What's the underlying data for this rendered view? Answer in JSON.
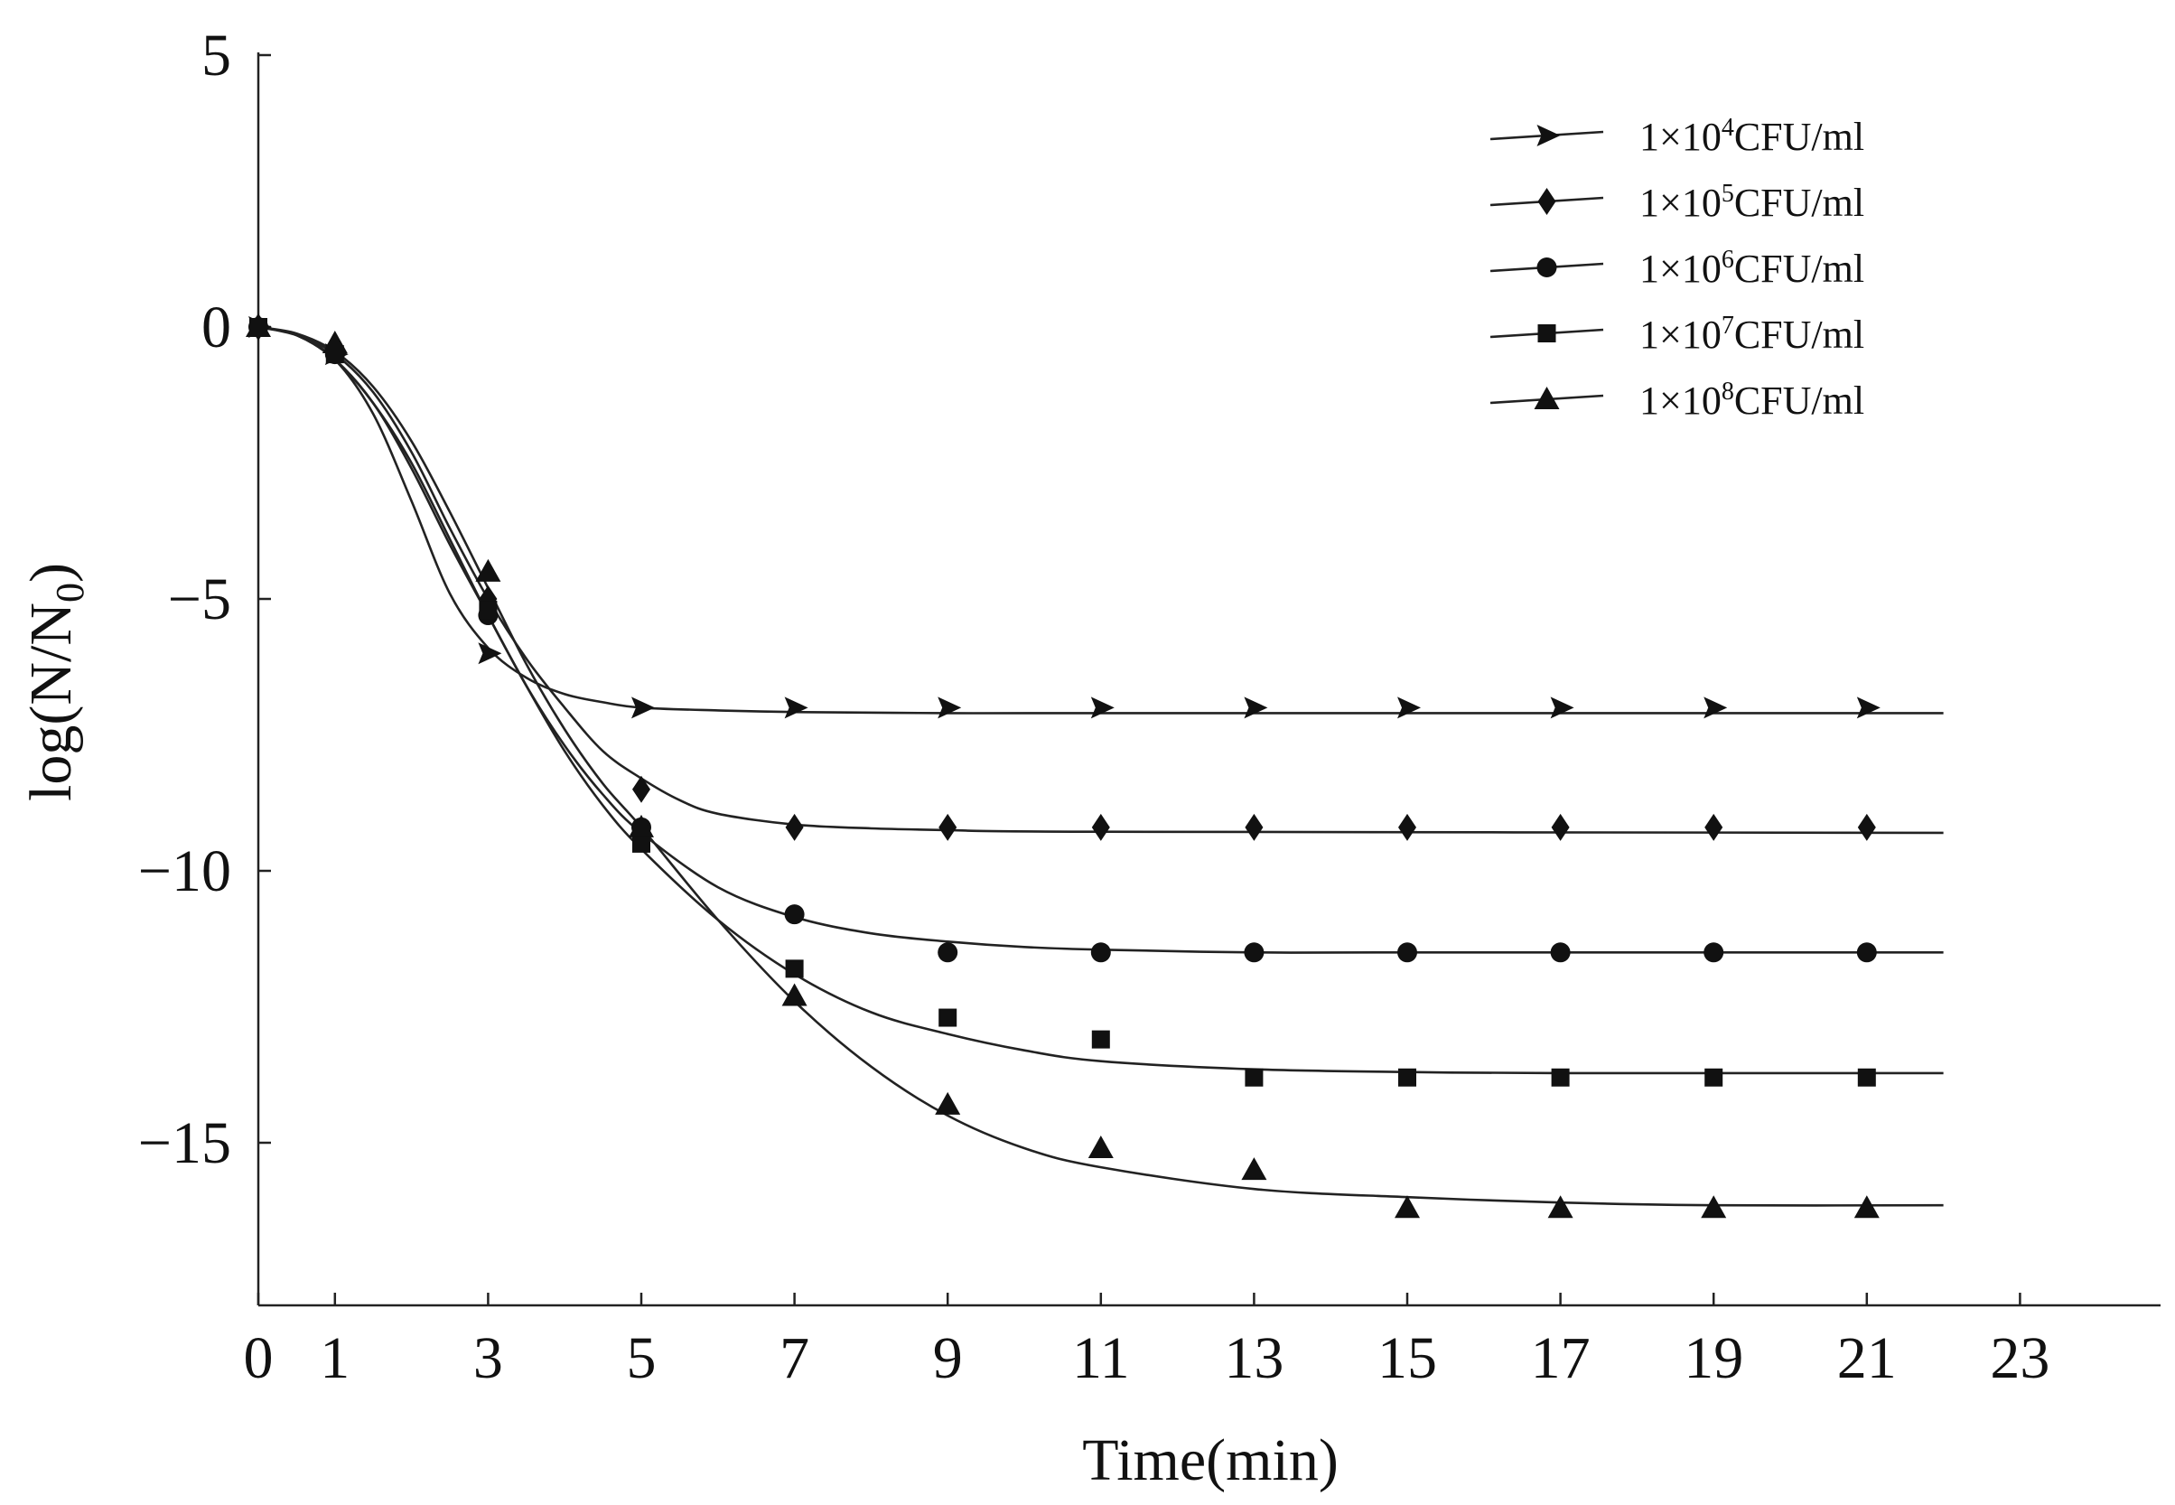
{
  "chart_data": {
    "type": "line",
    "title": "",
    "xlabel": "Time(min)",
    "ylabel": "log(N/N0)",
    "ylabel_parts": {
      "pre": "log(N/N",
      "sub": "0",
      "post": ")"
    },
    "xlim": [
      0,
      25
    ],
    "ylim": [
      -17.5,
      5
    ],
    "xticks": [
      0,
      1,
      3,
      5,
      7,
      9,
      11,
      13,
      15,
      17,
      19,
      21,
      23
    ],
    "yticks": [
      5,
      0,
      -5,
      -10,
      -15
    ],
    "ytick_labels": [
      "5",
      "0",
      "−5",
      "−10",
      "−15"
    ],
    "grid": false,
    "legend_position": "top-right",
    "series": [
      {
        "name": "1×10⁴CFU/ml",
        "label_pre": "1×10",
        "label_exp": "4",
        "label_post": "CFU/ml",
        "marker": "triangle-right",
        "x": [
          0,
          1,
          3,
          5,
          7,
          9,
          11,
          13,
          15,
          17,
          19,
          21
        ],
        "y": [
          0,
          -0.5,
          -6.0,
          -7.0,
          -7.0,
          -7.0,
          -7.0,
          -7.0,
          -7.0,
          -7.0,
          -7.0,
          -7.0
        ],
        "fit_x": [
          0,
          0.5,
          1,
          1.5,
          2,
          2.5,
          3,
          3.5,
          4,
          4.5,
          5,
          6,
          7,
          9,
          11,
          22
        ],
        "fit_y": [
          0,
          -0.15,
          -0.6,
          -1.6,
          -3.2,
          -4.9,
          -5.9,
          -6.45,
          -6.75,
          -6.9,
          -7.0,
          -7.05,
          -7.08,
          -7.1,
          -7.1,
          -7.1
        ]
      },
      {
        "name": "1×10⁵CFU/ml",
        "label_pre": "1×10",
        "label_exp": "5",
        "label_post": "CFU/ml",
        "marker": "diamond",
        "x": [
          0,
          1,
          3,
          5,
          7,
          9,
          11,
          13,
          15,
          17,
          19,
          21
        ],
        "y": [
          0,
          -0.4,
          -5.0,
          -8.5,
          -9.2,
          -9.2,
          -9.2,
          -9.2,
          -9.2,
          -9.2,
          -9.2,
          -9.2
        ],
        "fit_x": [
          0,
          0.5,
          1,
          1.5,
          2,
          2.5,
          3,
          3.5,
          4,
          4.5,
          5,
          5.5,
          6,
          7,
          8,
          9,
          11,
          22
        ],
        "fit_y": [
          0,
          -0.15,
          -0.5,
          -1.2,
          -2.3,
          -3.7,
          -5.0,
          -6.1,
          -7.0,
          -7.8,
          -8.3,
          -8.7,
          -8.95,
          -9.15,
          -9.22,
          -9.25,
          -9.28,
          -9.3
        ]
      },
      {
        "name": "1×10⁶CFU/ml",
        "label_pre": "1×10",
        "label_exp": "6",
        "label_post": "CFU/ml",
        "marker": "circle",
        "x": [
          0,
          1,
          3,
          5,
          7,
          9,
          11,
          13,
          15,
          17,
          19,
          21
        ],
        "y": [
          0,
          -0.5,
          -5.3,
          -9.2,
          -10.8,
          -11.5,
          -11.5,
          -11.5,
          -11.5,
          -11.5,
          -11.5,
          -11.5
        ],
        "fit_x": [
          0,
          0.5,
          1,
          1.5,
          2,
          2.5,
          3,
          3.5,
          4,
          4.5,
          5,
          6,
          7,
          8,
          9,
          10,
          11,
          13,
          15,
          22
        ],
        "fit_y": [
          0,
          -0.15,
          -0.6,
          -1.4,
          -2.6,
          -4.0,
          -5.3,
          -6.6,
          -7.7,
          -8.6,
          -9.3,
          -10.3,
          -10.85,
          -11.15,
          -11.3,
          -11.4,
          -11.45,
          -11.5,
          -11.5,
          -11.5
        ]
      },
      {
        "name": "1×10⁷CFU/ml",
        "label_pre": "1×10",
        "label_exp": "7",
        "label_post": "CFU/ml",
        "marker": "square",
        "x": [
          0,
          1,
          3,
          5,
          7,
          9,
          11,
          13,
          15,
          17,
          19,
          21
        ],
        "y": [
          0,
          -0.5,
          -5.2,
          -9.5,
          -11.8,
          -12.7,
          -13.1,
          -13.8,
          -13.8,
          -13.8,
          -13.8,
          -13.8
        ],
        "fit_x": [
          0,
          0.5,
          1,
          1.5,
          2,
          2.5,
          3,
          3.5,
          4,
          4.5,
          5,
          6,
          7,
          8,
          9,
          10,
          11,
          13,
          15,
          17,
          22
        ],
        "fit_y": [
          0,
          -0.15,
          -0.6,
          -1.4,
          -2.5,
          -3.9,
          -5.3,
          -6.6,
          -7.8,
          -8.8,
          -9.6,
          -10.9,
          -11.9,
          -12.6,
          -13.0,
          -13.3,
          -13.5,
          -13.65,
          -13.7,
          -13.72,
          -13.72
        ]
      },
      {
        "name": "1×10⁸CFU/ml",
        "label_pre": "1×10",
        "label_exp": "8",
        "label_post": "CFU/ml",
        "marker": "triangle-up",
        "x": [
          0,
          1,
          3,
          5,
          7,
          9,
          11,
          13,
          15,
          17,
          19,
          21
        ],
        "y": [
          0,
          -0.3,
          -4.5,
          -9.2,
          -12.3,
          -14.3,
          -15.1,
          -15.5,
          -16.2,
          -16.2,
          -16.2,
          -16.2
        ],
        "fit_x": [
          0,
          0.5,
          1,
          1.5,
          2,
          2.5,
          3,
          3.5,
          4,
          4.5,
          5,
          6,
          7,
          8,
          9,
          10,
          11,
          13,
          15,
          17,
          19,
          22
        ],
        "fit_y": [
          0,
          -0.12,
          -0.45,
          -1.1,
          -2.1,
          -3.4,
          -4.8,
          -6.2,
          -7.4,
          -8.4,
          -9.2,
          -10.9,
          -12.4,
          -13.6,
          -14.5,
          -15.1,
          -15.45,
          -15.85,
          -16.0,
          -16.1,
          -16.15,
          -16.15
        ]
      }
    ]
  }
}
